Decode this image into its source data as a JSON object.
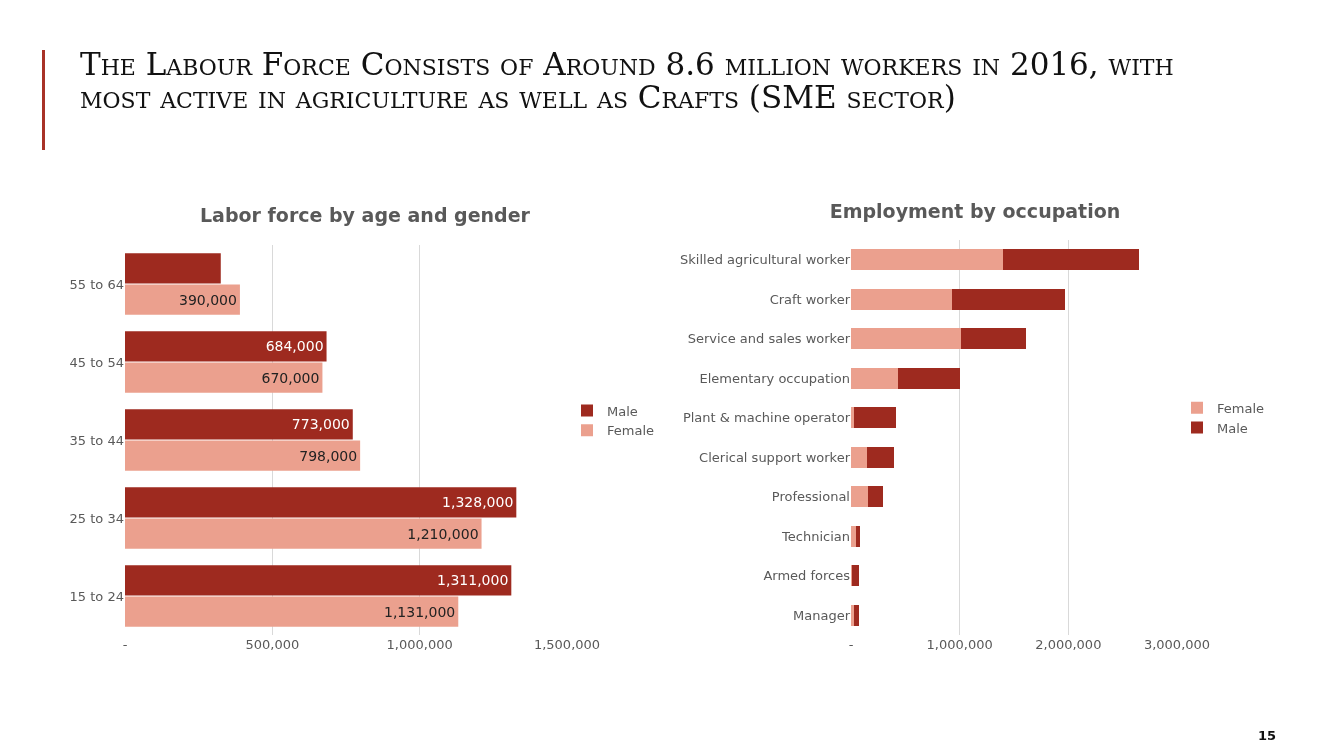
{
  "chart_data": [
    {
      "type": "other",
      "title": "The Labour Force Consists of Around 8.6 million workers in 2016, with most active in agriculture as well as Crafts (SME sector)",
      "annotations": [
        "15"
      ]
    },
    {
      "type": "bar",
      "orientation": "horizontal",
      "title": "Labor force by age and gender",
      "categories": [
        "55 to 64",
        "45 to 54",
        "35 to 44",
        "25 to 34",
        "15 to 24"
      ],
      "series": [
        {
          "name": "Male",
          "color": "#9e2a1f",
          "values": [
            325000,
            684000,
            773000,
            1328000,
            1311000
          ],
          "value_labels": [
            null,
            "684,000",
            "773,000",
            "1,328,000",
            "1,311,000"
          ]
        },
        {
          "name": "Female",
          "color": "#eba08e",
          "values": [
            390000,
            670000,
            798000,
            1210000,
            1131000
          ],
          "value_labels": [
            "390,000",
            "670,000",
            "798,000",
            "1,210,000",
            "1,131,000"
          ]
        }
      ],
      "xlim": [
        0,
        1500000
      ],
      "xticks": [
        {
          "value": 0,
          "label": "-"
        },
        {
          "value": 500000,
          "label": "500,000"
        },
        {
          "value": 1000000,
          "label": "1,000,000"
        },
        {
          "value": 1500000,
          "label": "1,500,000"
        }
      ],
      "grid": "x",
      "legend": "right"
    },
    {
      "type": "bar",
      "orientation": "horizontal",
      "stacked": true,
      "title": "Employment by occupation",
      "categories": [
        "Skilled agricultural worker",
        "Craft worker",
        "Service and sales worker",
        "Elementary occupation",
        "Plant & machine operator",
        "Clerical support worker",
        "Professional",
        "Technician",
        "Armed forces",
        "Manager"
      ],
      "series": [
        {
          "name": "Female",
          "color": "#eba08e",
          "values": [
            1400000,
            930000,
            1010000,
            430000,
            30000,
            150000,
            160000,
            50000,
            10000,
            30000
          ]
        },
        {
          "name": "Male",
          "color": "#9e2a1f",
          "values": [
            1250000,
            1040000,
            600000,
            570000,
            380000,
            250000,
            130000,
            30000,
            60000,
            40000
          ]
        }
      ],
      "xlim": [
        0,
        3000000
      ],
      "xticks": [
        {
          "value": 0,
          "label": "-"
        },
        {
          "value": 1000000,
          "label": "1,000,000"
        },
        {
          "value": 2000000,
          "label": "2,000,000"
        },
        {
          "value": 3000000,
          "label": "3,000,000"
        }
      ],
      "grid": "x",
      "legend": "right"
    }
  ]
}
